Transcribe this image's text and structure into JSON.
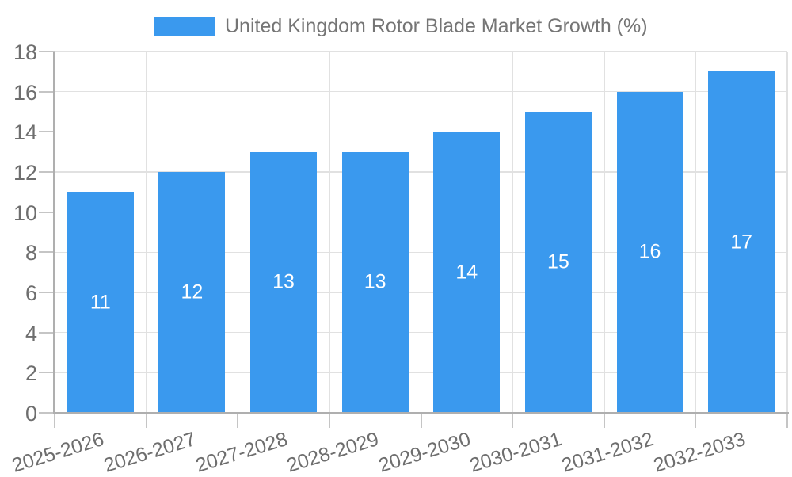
{
  "chart_data": {
    "type": "bar",
    "title": "United Kingdom Rotor Blade Market Growth (%)",
    "categories": [
      "2025-2026",
      "2026-2027",
      "2027-2028",
      "2028-2029",
      "2029-2030",
      "2030-2031",
      "2031-2032",
      "2032-2033"
    ],
    "values": [
      11,
      12,
      13,
      13,
      14,
      15,
      16,
      17
    ],
    "bar_value_labels": [
      "11",
      "12",
      "13",
      "13",
      "14",
      "15",
      "16",
      "17"
    ],
    "xlabel": "",
    "ylabel": "",
    "ylim": [
      0,
      18
    ],
    "yticks": [
      0,
      2,
      4,
      6,
      8,
      10,
      12,
      14,
      16,
      18
    ],
    "grid": true,
    "legend_position": "top-center",
    "x_label_rotation_deg": -17
  },
  "colors": {
    "bar": "#3A99EE",
    "grid": "#E1E1E1",
    "axis": "#AFAFAF",
    "tick": "#C5C5C5",
    "title_text": "#757575",
    "axis_text": "#6E6E6E",
    "bar_label_text": "#FFFFFF",
    "background": "#FFFFFF"
  }
}
